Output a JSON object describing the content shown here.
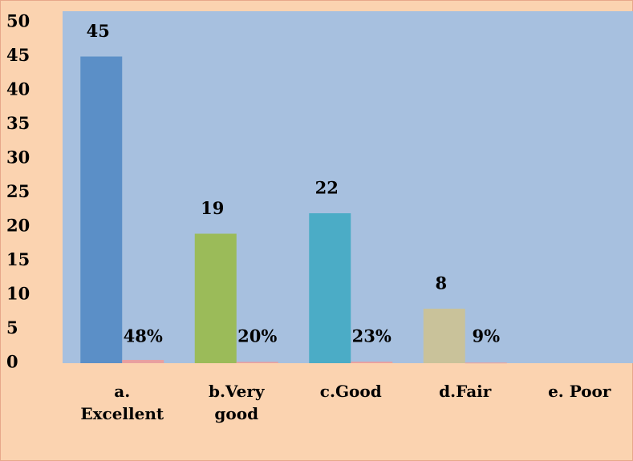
{
  "chart_data": {
    "type": "bar",
    "categories": [
      "a. Excellent",
      "b.Very good",
      "c.Good",
      "d.Fair",
      "e. Poor"
    ],
    "series": [
      {
        "colors": [
          "#5b8fc7",
          "#9bbb59",
          "#4bacc6",
          "#c9c29a",
          "#5b8fc7"
        ],
        "values": [
          45,
          19,
          22,
          8,
          null
        ]
      },
      {
        "color": "#e8a0a0",
        "values": [
          0.48,
          0.2,
          0.23,
          0.09,
          null
        ],
        "value_labels": [
          "48%",
          "20%",
          "23%",
          "9%",
          null
        ]
      }
    ],
    "ylim": [
      0,
      50
    ],
    "yticks": [
      0,
      5,
      10,
      15,
      20,
      25,
      30,
      35,
      40,
      45,
      50
    ],
    "grid": false
  }
}
